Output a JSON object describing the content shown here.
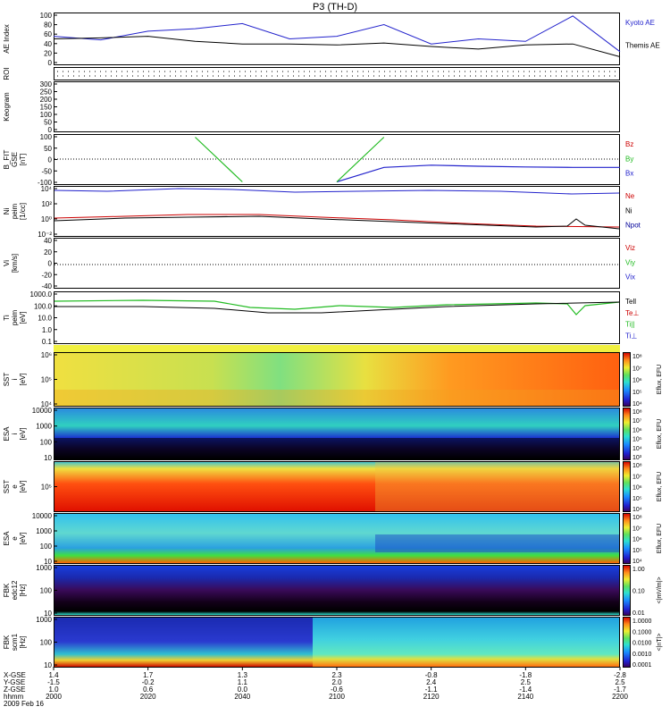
{
  "title": "P3 (TH-D)",
  "panels": [
    {
      "id": "ae",
      "ylabel": [
        "AE Index"
      ],
      "ticks": [
        "100",
        "80",
        "60",
        "40",
        "20",
        "0"
      ],
      "legend": [
        {
          "text": "Kyoto AE",
          "color": "#2222cc"
        },
        {
          "text": "Themis AE",
          "color": "#000000"
        }
      ]
    },
    {
      "id": "roi",
      "ylabel": [
        "ROI"
      ],
      "ticks": []
    },
    {
      "id": "keogram",
      "ylabel": [
        "Keogram"
      ],
      "ticks": [
        "300",
        "250",
        "200",
        "150",
        "100",
        "50",
        "0"
      ]
    },
    {
      "id": "bfit",
      "ylabel": [
        "B_FIT",
        "GSE",
        "[nT]"
      ],
      "ticks": [
        "100",
        "50",
        "0",
        "-50",
        "-100"
      ],
      "legend": [
        {
          "text": "Bz",
          "color": "#cc0000"
        },
        {
          "text": "By",
          "color": "#22bb22"
        },
        {
          "text": "Bx",
          "color": "#2222cc"
        }
      ]
    },
    {
      "id": "ni",
      "ylabel": [
        "Ni",
        "peim",
        "[1/cc]"
      ],
      "ticks": [
        "10⁴",
        "10²",
        "10⁰",
        "10⁻²"
      ],
      "legend": [
        {
          "text": "Ne",
          "color": "#cc0000"
        },
        {
          "text": "Ni",
          "color": "#000000"
        },
        {
          "text": "Npot",
          "color": "#000099"
        }
      ]
    },
    {
      "id": "vi",
      "ylabel": [
        "Vi",
        "[km/s]"
      ],
      "ticks": [
        "40",
        "20",
        "0",
        "-20",
        "-40"
      ],
      "legend": [
        {
          "text": "Viz",
          "color": "#cc0000"
        },
        {
          "text": "Viy",
          "color": "#22bb22"
        },
        {
          "text": "Vix",
          "color": "#2222cc"
        }
      ]
    },
    {
      "id": "ti",
      "ylabel": [
        "Ti",
        "peim",
        "[eV]"
      ],
      "ticks": [
        "1000.0",
        "100.0",
        "10.0",
        "1.0",
        "0.1"
      ],
      "legend": [
        {
          "text": "Tell",
          "color": "#000000"
        },
        {
          "text": "Te⊥",
          "color": "#cc0000"
        },
        {
          "text": "Ti||",
          "color": "#22bb22"
        },
        {
          "text": "Ti⊥",
          "color": "#2222cc"
        }
      ]
    },
    {
      "id": "sst_ion",
      "ylabel": [
        "SST",
        "i",
        "[eV]"
      ],
      "ticks": [
        "10⁶",
        "10⁵",
        "10⁴"
      ],
      "colorbar": {
        "ticks": [
          "10⁸",
          "10⁷",
          "10⁶",
          "10⁵",
          "10⁴"
        ],
        "label": "Eflux, EFU"
      }
    },
    {
      "id": "esa_ion",
      "ylabel": [
        "ESA",
        "i",
        "[eV]"
      ],
      "ticks": [
        "10000",
        "1000",
        "100",
        "10"
      ],
      "colorbar": {
        "ticks": [
          "10⁸",
          "10⁷",
          "10⁶",
          "10⁵",
          "10⁴",
          "10³"
        ],
        "label": "Eflux, EFU"
      }
    },
    {
      "id": "sst_el",
      "ylabel": [
        "SST",
        "e",
        "[eV]"
      ],
      "ticks": [
        "10⁵"
      ],
      "colorbar": {
        "ticks": [
          "10⁸",
          "10⁷",
          "10⁶",
          "10⁵",
          "10⁴"
        ],
        "label": "Eflux, EFU"
      }
    },
    {
      "id": "esa_el",
      "ylabel": [
        "ESA",
        "e",
        "[eV]"
      ],
      "ticks": [
        "10000",
        "1000",
        "100",
        "10"
      ],
      "colorbar": {
        "ticks": [
          "10⁸",
          "10⁷",
          "10⁶",
          "10⁵",
          "10⁴"
        ],
        "label": "Eflux, EFU"
      }
    },
    {
      "id": "fbk1",
      "ylabel": [
        "FBK",
        "edc12",
        "[Hz]"
      ],
      "ticks": [
        "1000",
        "100",
        "10"
      ],
      "colorbar": {
        "ticks": [
          "1.00",
          "0.10",
          "0.01"
        ],
        "label": "<|mV/m|>"
      }
    },
    {
      "id": "fbk2",
      "ylabel": [
        "FBK",
        "scm1",
        "[Hz]"
      ],
      "ticks": [
        "1000",
        "100",
        "10"
      ],
      "colorbar": {
        "ticks": [
          "1.0000",
          "0.1000",
          "0.0100",
          "0.0010",
          "0.0001"
        ],
        "label": "<|nT|>"
      }
    }
  ],
  "axis": {
    "row_labels": [
      "X-GSE",
      "Y-GSE",
      "Z-GSE",
      "hhmm",
      "2009 Feb 16"
    ],
    "columns": [
      {
        "rows": [
          "1.4",
          "-1.5",
          "1.0",
          "2000"
        ]
      },
      {
        "rows": [
          "1.7",
          "-0.2",
          "0.6",
          "2020"
        ]
      },
      {
        "rows": [
          "1.3",
          "1.1",
          "0.0",
          "2040"
        ]
      },
      {
        "rows": [
          "2.3",
          "2.0",
          "-0.6",
          "2100"
        ]
      },
      {
        "rows": [
          "-0.8",
          "2.4",
          "-1.1",
          "2120"
        ]
      },
      {
        "rows": [
          "-1.8",
          "2.5",
          "-1.4",
          "2140"
        ]
      },
      {
        "rows": [
          "-2.8",
          "2.5",
          "-1.7",
          "2200"
        ]
      }
    ]
  },
  "chart_data": {
    "type": "line",
    "title": "P3 (TH-D)",
    "x": [
      "2000",
      "2010",
      "2020",
      "2030",
      "2040",
      "2050",
      "2100",
      "2110",
      "2120",
      "2130",
      "2140",
      "2150",
      "2200"
    ],
    "xlabel": "hhmm",
    "series": [
      {
        "name": "Kyoto AE",
        "values": [
          55,
          48,
          65,
          70,
          80,
          50,
          55,
          78,
          40,
          50,
          45,
          95,
          25
        ]
      },
      {
        "name": "Themis AE",
        "values": [
          50,
          52,
          55,
          45,
          40,
          40,
          38,
          42,
          35,
          30,
          38,
          40,
          15
        ]
      },
      {
        "name": "Bx",
        "values": [
          null,
          null,
          null,
          null,
          null,
          null,
          -100,
          -35,
          -25,
          -30,
          -33,
          -35,
          -35
        ]
      },
      {
        "name": "By",
        "values": [
          null,
          null,
          null,
          100,
          -100,
          null,
          -100,
          100,
          null,
          null,
          null,
          null,
          null
        ]
      }
    ],
    "ylim": [
      0,
      100
    ],
    "grid": false
  }
}
